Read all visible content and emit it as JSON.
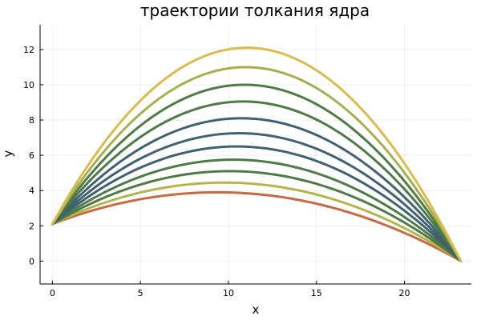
{
  "chart_data": {
    "type": "line",
    "title": "траектории толкания ядра",
    "xlabel": "x",
    "ylabel": "y",
    "xlim": [
      -0.7,
      23.8
    ],
    "ylim": [
      -1.3,
      13.4
    ],
    "xticks": [
      0,
      5,
      10,
      15,
      20
    ],
    "yticks": [
      0,
      2,
      4,
      6,
      8,
      10,
      12
    ],
    "grid": true,
    "legend": false,
    "launch_point": {
      "x": 0,
      "y": 2.1
    },
    "landing_point": {
      "x": 23.2,
      "y": 0
    },
    "series": [
      {
        "color": "#c46a44",
        "peak_x": 9.3,
        "peak_y": 3.9
      },
      {
        "color": "#b5b44e",
        "peak_x": 9.7,
        "peak_y": 4.45
      },
      {
        "color": "#4e7a46",
        "peak_x": 10.0,
        "peak_y": 5.1
      },
      {
        "color": "#4e7a46",
        "peak_x": 10.2,
        "peak_y": 5.75
      },
      {
        "color": "#3f6170",
        "peak_x": 10.4,
        "peak_y": 6.5
      },
      {
        "color": "#3f6170",
        "peak_x": 10.5,
        "peak_y": 7.25
      },
      {
        "color": "#3f6170",
        "peak_x": 10.7,
        "peak_y": 8.1
      },
      {
        "color": "#4e7a46",
        "peak_x": 10.9,
        "peak_y": 9.05
      },
      {
        "color": "#4e7a46",
        "peak_x": 11.0,
        "peak_y": 10.0
      },
      {
        "color": "#a6ae4f",
        "peak_x": 11.0,
        "peak_y": 11.0
      },
      {
        "color": "#d9bb4e",
        "peak_x": 11.1,
        "peak_y": 12.1
      }
    ]
  }
}
